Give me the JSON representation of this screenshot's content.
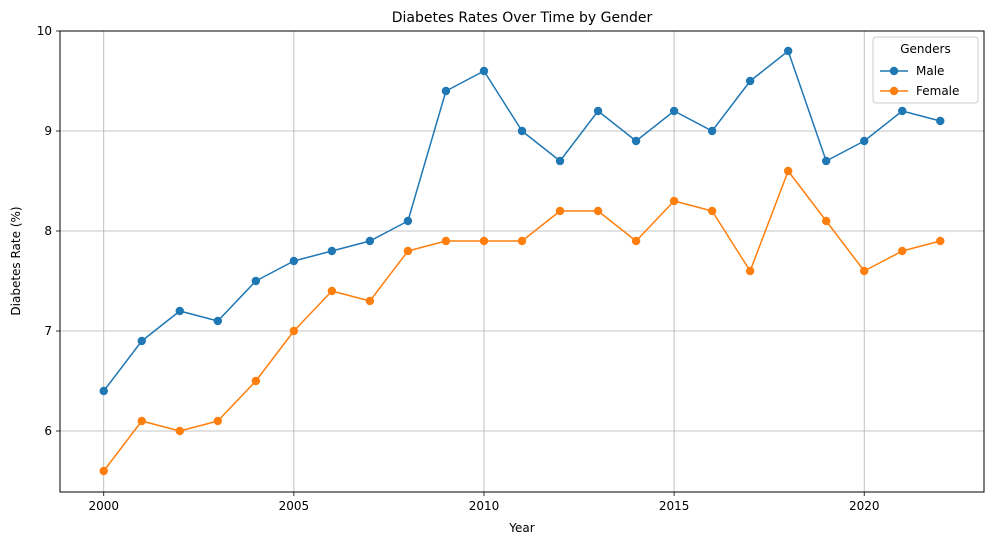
{
  "chart_data": {
    "type": "line",
    "title": "Diabetes Rates Over Time by Gender",
    "xlabel": "Year",
    "ylabel": "Diabetes Rate (%)",
    "x": [
      2000,
      2001,
      2002,
      2003,
      2004,
      2005,
      2006,
      2007,
      2008,
      2009,
      2010,
      2011,
      2012,
      2013,
      2014,
      2015,
      2016,
      2017,
      2018,
      2019,
      2020,
      2021,
      2022
    ],
    "xticks": [
      2000,
      2005,
      2010,
      2015,
      2020
    ],
    "yticks": [
      6,
      7,
      8,
      9,
      10
    ],
    "xlim": [
      1998.85,
      2023.15
    ],
    "ylim": [
      5.39,
      10.0
    ],
    "grid": true,
    "legend": {
      "title": "Genders",
      "placement": "top-right"
    },
    "series": [
      {
        "name": "Male",
        "color": "#1f77b4",
        "values": [
          6.4,
          6.9,
          7.2,
          7.1,
          7.5,
          7.7,
          7.8,
          7.9,
          8.1,
          9.4,
          9.6,
          9.0,
          8.7,
          9.2,
          8.9,
          9.2,
          9.0,
          9.5,
          9.8,
          8.7,
          8.9,
          9.2,
          9.1
        ]
      },
      {
        "name": "Female",
        "color": "#ff7f0e",
        "values": [
          5.6,
          6.1,
          6.0,
          6.1,
          6.5,
          7.0,
          7.4,
          7.3,
          7.8,
          7.9,
          7.9,
          7.9,
          8.2,
          8.2,
          7.9,
          8.3,
          8.2,
          7.6,
          8.6,
          8.1,
          7.6,
          7.8,
          7.9
        ]
      }
    ]
  }
}
